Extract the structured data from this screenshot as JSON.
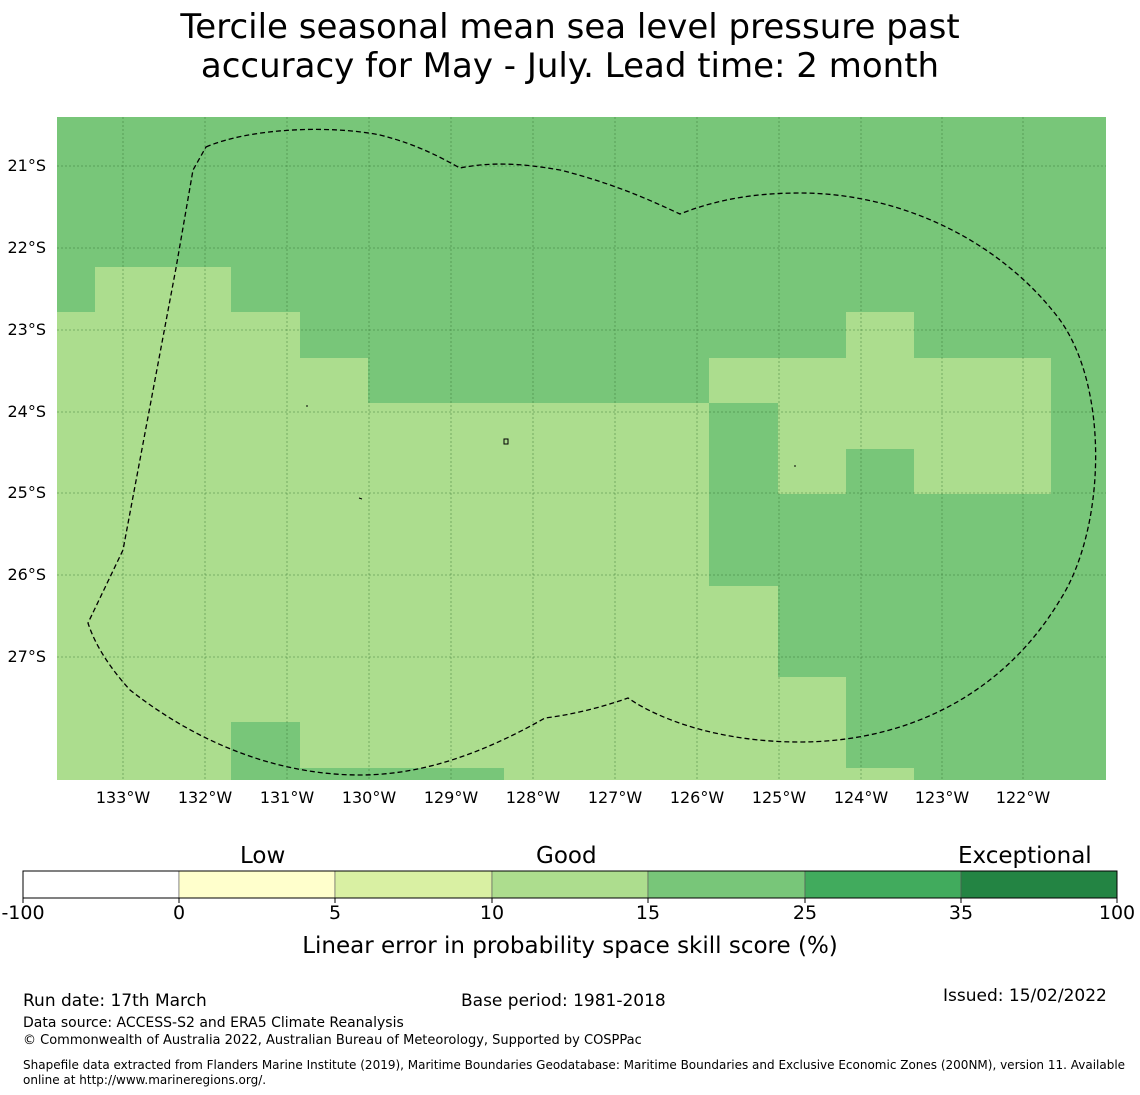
{
  "title": {
    "line1": "Tercile seasonal mean sea level pressure past",
    "line2": "accuracy for May - July. Lead time: 2 month"
  },
  "map": {
    "colors": {
      "low_band": "#acdd8e",
      "mid_band": "#78c679",
      "grid": "#2e6b2e",
      "outline": "#000000"
    },
    "lat_labels": [
      "21°S",
      "22°S",
      "23°S",
      "24°S",
      "25°S",
      "26°S",
      "27°S"
    ],
    "lon_labels": [
      "133°W",
      "132°W",
      "131°W",
      "130°W",
      "129°W",
      "128°W",
      "127°W",
      "126°W",
      "125°W",
      "124°W",
      "123°W",
      "122°W"
    ],
    "boundary_style": "dashed"
  },
  "colorbar": {
    "category_labels": {
      "low": "Low",
      "good": "Good",
      "exceptional": "Exceptional"
    },
    "ticks": [
      "-100",
      "0",
      "5",
      "10",
      "15",
      "25",
      "35",
      "100"
    ],
    "colors": [
      "#ffffff",
      "#ffffcc",
      "#d9f0a3",
      "#addd8e",
      "#78c679",
      "#41ab5d",
      "#238443"
    ],
    "label": "Linear error in probability space skill score (%)"
  },
  "footer": {
    "run_date": "Run date: 17th March",
    "base_period": "Base period: 1981-2018",
    "issued": "Issued: 15/02/2022",
    "data_source": "Data source: ACCESS-S2 and ERA5 Climate Reanalysis",
    "copyright": "© Commonwealth of Australia 2022, Australian Bureau of Meteorology, Supported by COSPPac",
    "shapefile_line1": "Shapefile data extracted from Flanders Marine Institute (2019), Maritime Boundaries Geodatabase: Maritime Boundaries and Exclusive Economic Zones (200NM), version 11. Available",
    "shapefile_line2": "online at http://www.marineregions.org/."
  }
}
